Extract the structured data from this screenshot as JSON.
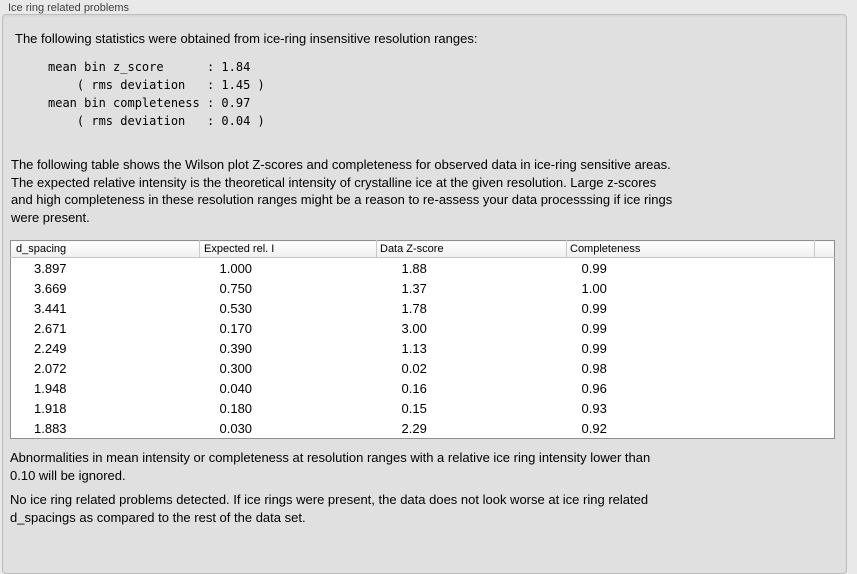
{
  "group": {
    "title": "Ice ring related problems"
  },
  "intro": "The following statistics were obtained from ice-ring insensitive resolution ranges:",
  "stats_lines": [
    "mean bin z_score      : 1.84",
    "    ( rms deviation   : 1.45 )",
    "mean bin completeness : 0.97",
    "    ( rms deviation   : 0.04 )"
  ],
  "description_lines": [
    "The following table shows the Wilson plot Z-scores and completeness for observed data in ice-ring sensitive areas.",
    "The expected relative intensity is the theoretical intensity of crystalline ice at the given resolution. Large z-scores",
    "and high completeness in these resolution ranges might be a reason to re-assess your data processsing if ice rings",
    "were present."
  ],
  "table": {
    "headers": [
      "d_spacing",
      "Expected rel. I",
      "Data Z-score",
      "Completeness"
    ],
    "rows": [
      [
        "3.897",
        "1.000",
        "1.88",
        "0.99"
      ],
      [
        "3.669",
        "0.750",
        "1.37",
        "1.00"
      ],
      [
        "3.441",
        "0.530",
        "1.78",
        "0.99"
      ],
      [
        "2.671",
        "0.170",
        "3.00",
        "0.99"
      ],
      [
        "2.249",
        "0.390",
        "1.13",
        "0.99"
      ],
      [
        "2.072",
        "0.300",
        "0.02",
        "0.98"
      ],
      [
        "1.948",
        "0.040",
        "0.16",
        "0.96"
      ],
      [
        "1.918",
        "0.180",
        "0.15",
        "0.93"
      ],
      [
        "1.883",
        "0.030",
        "2.29",
        "0.92"
      ]
    ]
  },
  "note_lines": [
    "Abnormalities in mean intensity or completeness at resolution ranges with a relative ice ring intensity lower than",
    "0.10 will be ignored."
  ],
  "conclusion_lines": [
    "No ice ring related problems detected. If ice rings were present, the data does not look worse at ice ring related",
    "d_spacings as compared to the rest of the data set."
  ]
}
